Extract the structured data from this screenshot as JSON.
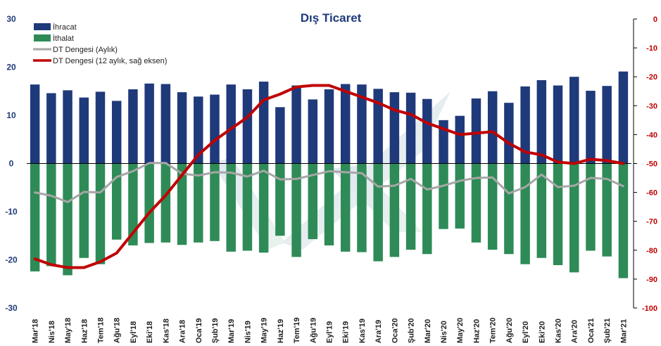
{
  "chart_data": {
    "type": "bar",
    "title": "Dış Ticaret",
    "categories": [
      "Mar'18",
      "Nis'18",
      "May'18",
      "Haz'18",
      "Tem'18",
      "Ağu'18",
      "Eyl'18",
      "Eki'18",
      "Kas'18",
      "Ara'18",
      "Oca'19",
      "Şub'19",
      "Mar'19",
      "Nis'19",
      "May'19",
      "Haz'19",
      "Tem'19",
      "Ağu'19",
      "Eyl'19",
      "Eki'19",
      "Kas'19",
      "Ara'19",
      "Oca'20",
      "Şub'20",
      "Mar'20",
      "Nis'20",
      "May'20",
      "Haz'20",
      "Tem'20",
      "Ağu'20",
      "Eyl'20",
      "Eki'20",
      "Kas'20",
      "Ara'20",
      "Oca'21",
      "Şub'21",
      "Mar'21"
    ],
    "series": [
      {
        "name": "İhracat",
        "type": "bar",
        "axis": "left",
        "color": "#1f3a7a",
        "values": [
          16.4,
          14.6,
          15.2,
          13.7,
          14.9,
          13.0,
          15.4,
          16.6,
          16.5,
          14.8,
          13.9,
          14.3,
          16.4,
          15.4,
          17.0,
          11.7,
          16.2,
          13.3,
          15.4,
          16.5,
          16.4,
          15.5,
          14.8,
          14.7,
          13.4,
          9.0,
          9.9,
          13.5,
          15.0,
          12.6,
          16.0,
          17.3,
          16.2,
          18.0,
          15.1,
          16.1,
          19.1
        ]
      },
      {
        "name": "İthalat",
        "type": "bar",
        "axis": "left",
        "color": "#2e8b57",
        "values": [
          -22.4,
          -21.3,
          -23.2,
          -19.6,
          -20.9,
          -15.8,
          -17.0,
          -16.5,
          -16.4,
          -16.9,
          -16.4,
          -16.1,
          -18.3,
          -18.1,
          -18.5,
          -15.0,
          -19.4,
          -15.7,
          -17.0,
          -18.3,
          -18.4,
          -20.3,
          -19.4,
          -17.9,
          -18.8,
          -13.6,
          -13.5,
          -16.4,
          -17.9,
          -18.8,
          -20.9,
          -19.6,
          -21.1,
          -22.6,
          -18.1,
          -19.3,
          -23.8
        ]
      },
      {
        "name": "DT Dengesi (Aylık)",
        "type": "line",
        "axis": "left",
        "color": "#a6a6a6",
        "values": [
          -6.0,
          -6.7,
          -8.0,
          -5.9,
          -6.0,
          -2.8,
          -1.6,
          0.1,
          0.1,
          -2.1,
          -2.5,
          -1.8,
          -1.9,
          -2.7,
          -1.5,
          -3.3,
          -3.2,
          -2.4,
          -1.6,
          -1.8,
          -2.0,
          -4.8,
          -4.6,
          -3.2,
          -5.4,
          -4.6,
          -3.6,
          -3.0,
          -2.9,
          -6.2,
          -4.9,
          -2.3,
          -4.9,
          -4.6,
          -3.0,
          -3.2,
          -4.7
        ]
      },
      {
        "name": "DT Dengesi (12 aylık, sağ eksen)",
        "type": "line",
        "axis": "right",
        "color": "#c00000",
        "values": [
          -83,
          -85,
          -86,
          -86,
          -84,
          -81,
          -74,
          -67,
          -61,
          -54,
          -47,
          -42,
          -38,
          -34,
          -28,
          -26,
          -23.5,
          -23,
          -23,
          -25,
          -27,
          -29,
          -31.5,
          -33,
          -36,
          -38,
          -40,
          -39.5,
          -39,
          -43,
          -46,
          -47,
          -49.5,
          -50,
          -48.5,
          -49,
          -50
        ]
      }
    ],
    "left_axis": {
      "min": -30,
      "max": 30,
      "ticks": [
        "30",
        "20",
        "10",
        "0",
        "-10",
        "-20",
        "-30"
      ],
      "color": "#1f3a7a"
    },
    "right_axis": {
      "min": -100,
      "max": 0,
      "ticks": [
        "0",
        "-10",
        "-20",
        "-30",
        "-40",
        "-50",
        "-60",
        "-70",
        "-80",
        "-90",
        "-100"
      ],
      "color": "#c00000"
    },
    "legend_position": "top-left",
    "grid": false
  }
}
